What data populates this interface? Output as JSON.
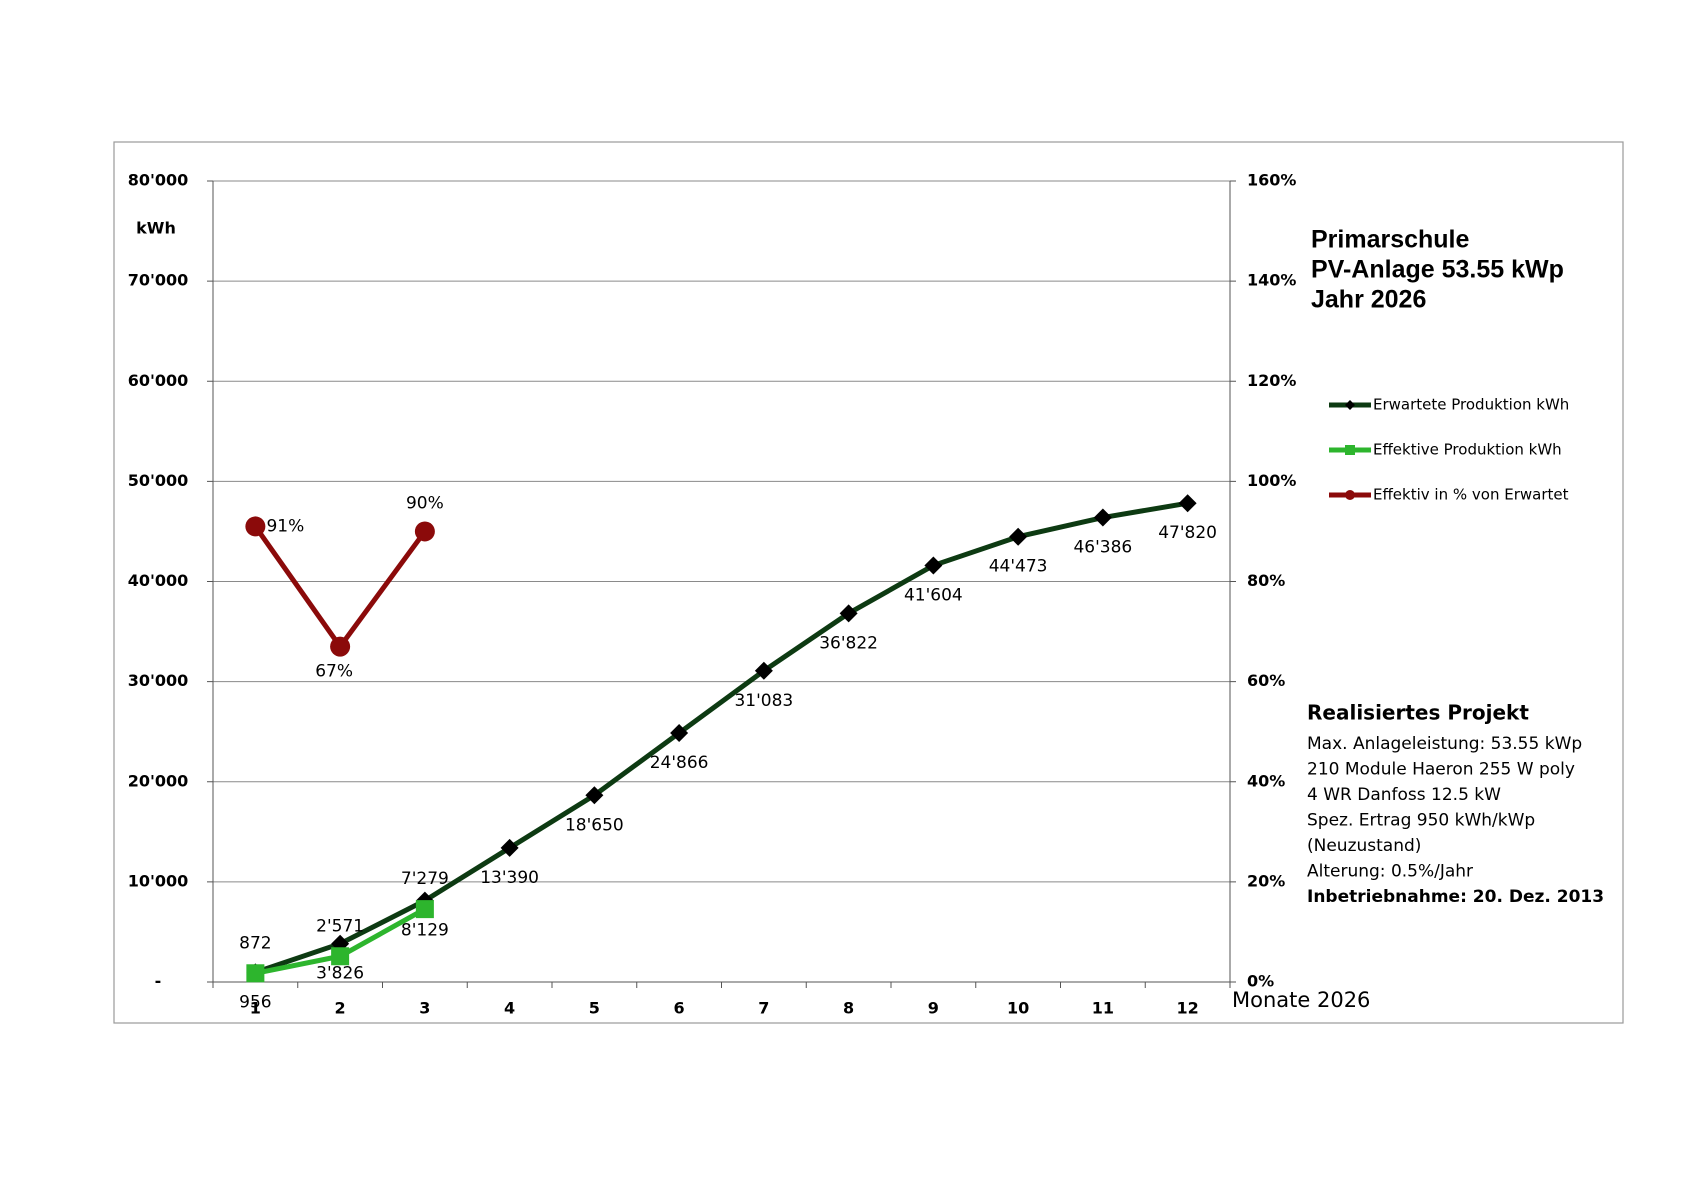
{
  "chart_data": {
    "type": "line",
    "title_lines": [
      "Primarschule",
      "PV-Anlage 53.55 kWp",
      "Jahr 2026"
    ],
    "y_label": "kWh",
    "x_label": "Monate 2026",
    "categories": [
      "1",
      "2",
      "3",
      "4",
      "5",
      "6",
      "7",
      "8",
      "9",
      "10",
      "11",
      "12"
    ],
    "ylim": [
      0,
      80000
    ],
    "yticks": [
      {
        "value": 0,
        "label": "-"
      },
      {
        "value": 10000,
        "label": "10'000"
      },
      {
        "value": 20000,
        "label": "20'000"
      },
      {
        "value": 30000,
        "label": "30'000"
      },
      {
        "value": 40000,
        "label": "40'000"
      },
      {
        "value": 50000,
        "label": "50'000"
      },
      {
        "value": 60000,
        "label": "60'000"
      },
      {
        "value": 70000,
        "label": "70'000"
      },
      {
        "value": 80000,
        "label": "80'000"
      }
    ],
    "y2lim": [
      0,
      160
    ],
    "y2ticks": [
      {
        "value": 0,
        "label": "0%"
      },
      {
        "value": 20,
        "label": "20%"
      },
      {
        "value": 40,
        "label": "40%"
      },
      {
        "value": 60,
        "label": "60%"
      },
      {
        "value": 80,
        "label": "80%"
      },
      {
        "value": 100,
        "label": "100%"
      },
      {
        "value": 120,
        "label": "120%"
      },
      {
        "value": 140,
        "label": "140%"
      },
      {
        "value": 160,
        "label": "160%"
      }
    ],
    "grid": true,
    "series": [
      {
        "name": "Erwartete Produktion kWh",
        "color": "#0d3a12",
        "marker_color": "#000000",
        "marker": "diamond",
        "values": [
          956,
          3826,
          8129,
          13390,
          18650,
          24866,
          31083,
          36822,
          41604,
          44473,
          46386,
          47820
        ],
        "value_labels": [
          "956",
          "3'826",
          "8'129",
          "13'390",
          "18'650",
          "24'866",
          "31'083",
          "36'822",
          "41'604",
          "44'473",
          "46'386",
          "47'820"
        ]
      },
      {
        "name": "Effektive Produktion kWh",
        "color": "#2db52d",
        "marker_color": "#2db52d",
        "marker": "square",
        "values": [
          872,
          2571,
          7279,
          null,
          null,
          null,
          null,
          null,
          null,
          null,
          null,
          null
        ],
        "value_labels": [
          "872",
          "2'571",
          "7'279",
          null,
          null,
          null,
          null,
          null,
          null,
          null,
          null,
          null
        ]
      },
      {
        "name": "Effektiv in % von Erwartet",
        "color": "#8b0a0a",
        "marker_color": "#8b0a0a",
        "marker": "circle",
        "axis": "y2",
        "values": [
          91,
          67,
          90,
          null,
          null,
          null,
          null,
          null,
          null,
          null,
          null,
          null
        ],
        "value_labels": [
          "91%",
          "67%",
          "90%",
          null,
          null,
          null,
          null,
          null,
          null,
          null,
          null,
          null
        ]
      }
    ],
    "info": {
      "heading": "Realisiertes Projekt",
      "lines": [
        "Max. Anlageleistung: 53.55 kWp",
        "210 Module Haeron 255 W poly",
        "4 WR Danfoss 12.5 kW",
        "Spez. Ertrag 950 kWh/kWp",
        "(Neuzustand)",
        "Alterung: 0.5%/Jahr"
      ],
      "footer": "Inbetriebnahme: 20. Dez. 2013"
    }
  }
}
